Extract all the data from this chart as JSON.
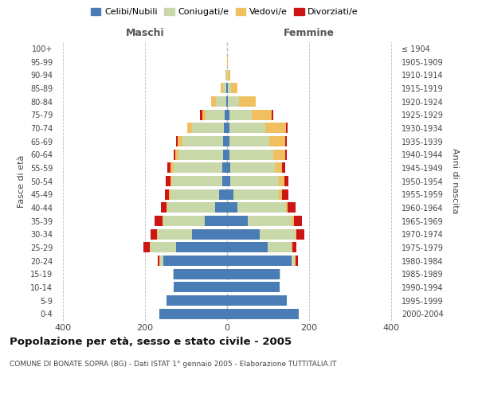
{
  "age_groups": [
    "0-4",
    "5-9",
    "10-14",
    "15-19",
    "20-24",
    "25-29",
    "30-34",
    "35-39",
    "40-44",
    "45-49",
    "50-54",
    "55-59",
    "60-64",
    "65-69",
    "70-74",
    "75-79",
    "80-84",
    "85-89",
    "90-94",
    "95-99",
    "100+"
  ],
  "birth_years": [
    "2000-2004",
    "1995-1999",
    "1990-1994",
    "1985-1989",
    "1980-1984",
    "1975-1979",
    "1970-1974",
    "1965-1969",
    "1960-1964",
    "1955-1959",
    "1950-1954",
    "1945-1949",
    "1940-1944",
    "1935-1939",
    "1930-1934",
    "1925-1929",
    "1920-1924",
    "1915-1919",
    "1910-1914",
    "1905-1909",
    "≤ 1904"
  ],
  "maschi": {
    "celibi": [
      165,
      148,
      130,
      130,
      155,
      125,
      85,
      55,
      30,
      20,
      12,
      12,
      10,
      10,
      8,
      5,
      2,
      2,
      0,
      0,
      0
    ],
    "coniugati": [
      0,
      0,
      0,
      2,
      8,
      62,
      85,
      100,
      115,
      118,
      122,
      118,
      108,
      98,
      78,
      48,
      25,
      8,
      2,
      0,
      0
    ],
    "vedovi": [
      0,
      0,
      0,
      0,
      2,
      2,
      2,
      2,
      2,
      4,
      5,
      8,
      8,
      12,
      12,
      8,
      12,
      5,
      2,
      0,
      0
    ],
    "divorziati": [
      0,
      0,
      0,
      0,
      5,
      15,
      15,
      20,
      15,
      10,
      10,
      8,
      5,
      5,
      0,
      5,
      0,
      0,
      0,
      0,
      0
    ]
  },
  "femmine": {
    "nubili": [
      175,
      145,
      128,
      128,
      158,
      100,
      80,
      50,
      25,
      15,
      8,
      8,
      5,
      5,
      5,
      5,
      2,
      2,
      0,
      0,
      0
    ],
    "coniugate": [
      0,
      0,
      0,
      2,
      8,
      58,
      88,
      108,
      118,
      112,
      118,
      108,
      108,
      98,
      88,
      55,
      28,
      8,
      2,
      0,
      0
    ],
    "vedove": [
      0,
      0,
      0,
      0,
      2,
      2,
      2,
      5,
      5,
      8,
      14,
      18,
      28,
      38,
      50,
      48,
      40,
      15,
      5,
      2,
      0
    ],
    "divorziate": [
      0,
      0,
      0,
      0,
      5,
      10,
      18,
      20,
      20,
      15,
      10,
      8,
      5,
      5,
      5,
      5,
      0,
      0,
      0,
      0,
      0
    ]
  },
  "colors": {
    "celibi_nubili": "#4a7db5",
    "coniugati": "#c8d8a8",
    "vedovi": "#f0c060",
    "divorziati": "#cc1515"
  },
  "xlim": 420,
  "xticks": [
    -400,
    -200,
    0,
    200,
    400
  ],
  "title": "Popolazione per età, sesso e stato civile - 2005",
  "subtitle": "COMUNE DI BONATE SOPRA (BG) - Dati ISTAT 1° gennaio 2005 - Elaborazione TUTTITALIA.IT",
  "ylabel_left": "Fasce di età",
  "ylabel_right": "Anni di nascita",
  "xlabel_left": "Maschi",
  "xlabel_right": "Femmine",
  "background_color": "#ffffff",
  "grid_color": "#cccccc"
}
